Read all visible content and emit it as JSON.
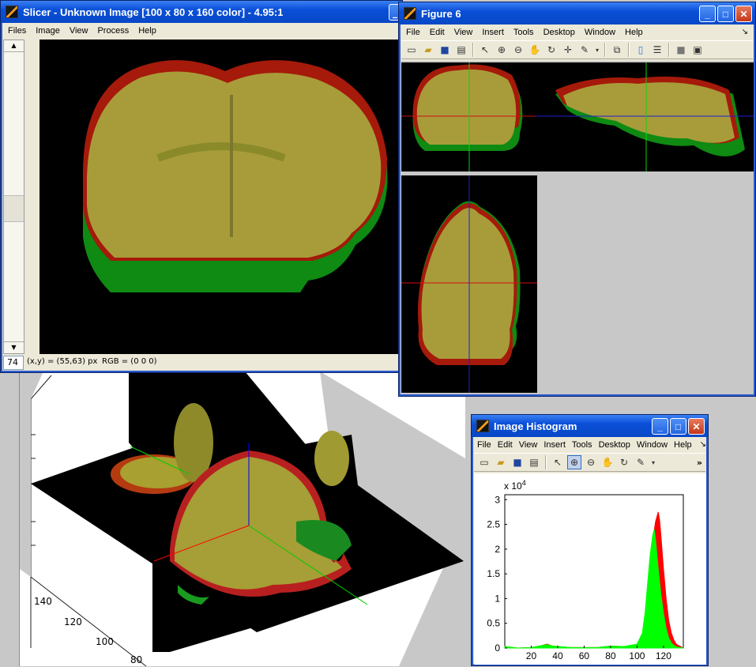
{
  "slicer": {
    "title": "Slicer - Unknown Image [100 x 80 x 160 color] - 4.95:1",
    "menu": [
      "Files",
      "Image",
      "View",
      "Process",
      "Help"
    ],
    "slice_number": "74",
    "status_coords": "(x,y) = (55,63) px",
    "status_rgb": "RGB = (0 0 0)"
  },
  "figure6": {
    "title": "Figure 6",
    "menu": [
      "File",
      "Edit",
      "View",
      "Insert",
      "Tools",
      "Desktop",
      "Window",
      "Help"
    ]
  },
  "histogram": {
    "title": "Image Histogram",
    "menu": [
      "File",
      "Edit",
      "View",
      "Insert",
      "Tools",
      "Desktop",
      "Window",
      "Help"
    ],
    "overflow": "»"
  },
  "volume3d": {
    "axis_ticks": [
      "140",
      "120",
      "100",
      "80"
    ]
  },
  "icons": {
    "app": "matlab-icon",
    "minimize": "minimize-icon",
    "maximize": "maximize-icon",
    "close": "close-icon"
  },
  "chart_data": {
    "type": "area",
    "title": "",
    "xlabel": "",
    "ylabel": "",
    "y_exponent_label": "x 10^4",
    "xlim": [
      0,
      135
    ],
    "ylim": [
      0,
      3.1
    ],
    "xticks": [
      "20",
      "40",
      "60",
      "80",
      "100",
      "120"
    ],
    "yticks": [
      "0",
      "0.5",
      "1",
      "1.5",
      "2",
      "2.5",
      "3"
    ],
    "series": [
      {
        "color": "#ff0000",
        "x": [
          0,
          10,
          20,
          28,
          32,
          36,
          50,
          70,
          80,
          90,
          100,
          104,
          106,
          108,
          110,
          112,
          114,
          115,
          116,
          117,
          118,
          120,
          122,
          124,
          126,
          128,
          130,
          135
        ],
        "values": [
          0.03,
          0.0,
          0.01,
          0.05,
          0.08,
          0.04,
          0.01,
          0.01,
          0.04,
          0.03,
          0.06,
          0.15,
          0.35,
          0.8,
          1.5,
          2.2,
          2.55,
          2.65,
          2.75,
          2.6,
          2.3,
          1.6,
          1.0,
          0.55,
          0.3,
          0.15,
          0.07,
          0.0
        ]
      },
      {
        "color": "#00ff00",
        "x": [
          0,
          10,
          20,
          28,
          32,
          36,
          50,
          70,
          80,
          90,
          100,
          104,
          106,
          108,
          110,
          112,
          113,
          114,
          115,
          116,
          118,
          120,
          122,
          124,
          126,
          128,
          130,
          135
        ],
        "values": [
          0.03,
          0.0,
          0.01,
          0.05,
          0.07,
          0.04,
          0.01,
          0.01,
          0.04,
          0.03,
          0.08,
          0.3,
          0.7,
          1.3,
          1.9,
          2.3,
          2.4,
          2.2,
          1.9,
          1.6,
          1.1,
          0.7,
          0.4,
          0.2,
          0.1,
          0.05,
          0.02,
          0.0
        ]
      }
    ]
  }
}
